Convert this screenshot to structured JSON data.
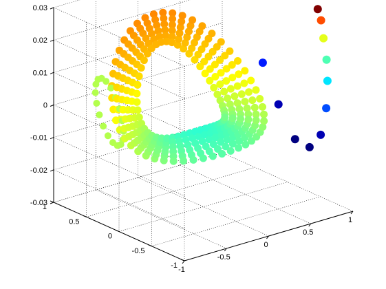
{
  "chart_data": {
    "type": "scatter3d",
    "title": "",
    "xlabel": "",
    "ylabel": "",
    "zlabel": "",
    "grid": true,
    "colormap": "jet",
    "xlim": [
      -1,
      1
    ],
    "ylim": [
      -1,
      1
    ],
    "zlim": [
      -0.03,
      0.03
    ],
    "x_ticks": [
      "-1",
      "-0.5",
      "0",
      "0.5",
      "1"
    ],
    "y_ticks": [
      "-1",
      "-0.5",
      "0",
      "0.5",
      "1"
    ],
    "z_ticks": [
      "-0.03",
      "-0.02",
      "-0.01",
      "0",
      "0.01",
      "0.02",
      "0.03"
    ],
    "trajectory": {
      "description_parameters": {
        "loops": 6,
        "points_per_loop": 48
      }
    },
    "tail": {
      "points": [
        {
          "x": 0.55,
          "y": -0.2,
          "z": 0.012,
          "c": 0.15
        },
        {
          "x": 0.62,
          "y": -0.35,
          "z": 0.0,
          "c": 0.05
        },
        {
          "x": 0.7,
          "y": -0.5,
          "z": -0.01,
          "c": 0.0
        },
        {
          "x": 0.78,
          "y": -0.62,
          "z": -0.012,
          "c": 0.0
        },
        {
          "x": 0.85,
          "y": -0.7,
          "z": -0.008,
          "c": 0.05
        },
        {
          "x": 0.9,
          "y": -0.72,
          "z": 0.0,
          "c": 0.2
        },
        {
          "x": 0.93,
          "y": -0.7,
          "z": 0.008,
          "c": 0.35
        },
        {
          "x": 0.95,
          "y": -0.66,
          "z": 0.014,
          "c": 0.45
        },
        {
          "x": 0.96,
          "y": -0.6,
          "z": 0.02,
          "c": 0.6
        },
        {
          "x": 0.97,
          "y": -0.55,
          "z": 0.025,
          "c": 0.8
        },
        {
          "x": 0.97,
          "y": -0.5,
          "z": 0.028,
          "c": 1.0
        }
      ]
    }
  }
}
